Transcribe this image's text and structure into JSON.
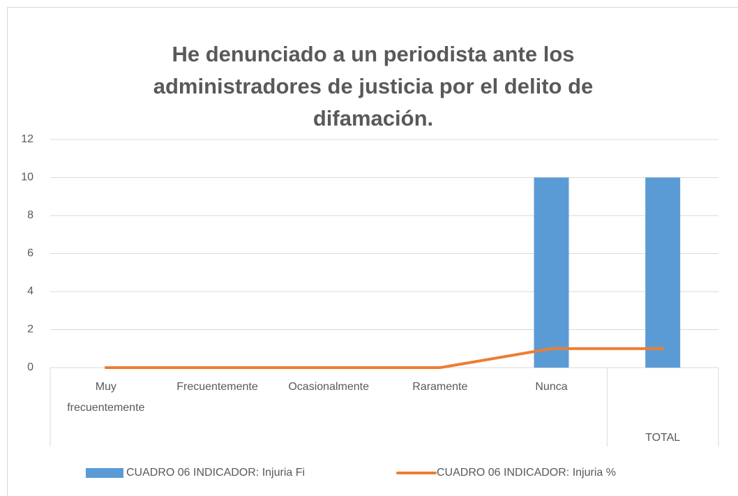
{
  "chart_data": {
    "type": "combo",
    "title": "He denunciado a un periodista ante los administradores de justicia por el delito de difamación.",
    "categories": [
      "Muy frecuentemente",
      "Frecuentemente",
      "Ocasionalmente",
      "Raramente",
      "Nunca",
      "TOTAL"
    ],
    "series": [
      {
        "name": "CUADRO 06 INDICADOR: Injuria Fi",
        "type": "bar",
        "color": "#5b9bd5",
        "values": [
          0,
          0,
          0,
          0,
          10,
          10
        ]
      },
      {
        "name": "CUADRO 06 INDICADOR: Injuria %",
        "type": "line",
        "color": "#ed7d31",
        "values": [
          0,
          0,
          0,
          0,
          1,
          1
        ]
      }
    ],
    "ylim": [
      0,
      12
    ],
    "yticks": [
      0,
      2,
      4,
      6,
      8,
      10,
      12
    ],
    "grid": true,
    "legend": "bottom"
  }
}
